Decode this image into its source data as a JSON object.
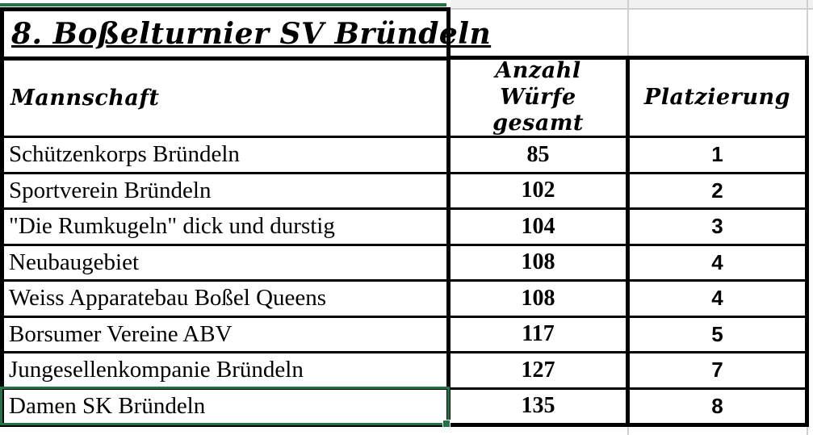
{
  "title": "8. Boßelturnier SV Bründeln",
  "headers": {
    "team": "Mannschaft",
    "throws": "Anzahl Würfe gesamt",
    "placement": "Platzierung"
  },
  "rows": [
    {
      "team": "Schützenkorps Bründeln",
      "throws": "85",
      "placement": "1"
    },
    {
      "team": "Sportverein Bründeln",
      "throws": "102",
      "placement": "2"
    },
    {
      "team": "\"Die Rumkugeln\" dick und durstig",
      "throws": "104",
      "placement": "3"
    },
    {
      "team": "Neubaugebiet",
      "throws": "108",
      "placement": "4"
    },
    {
      "team": "Weiss Apparatebau Boßel Queens",
      "throws": "108",
      "placement": "4"
    },
    {
      "team": "Borsumer Vereine ABV",
      "throws": "117",
      "placement": "5"
    },
    {
      "team": "Jungesellenkompanie Bründeln",
      "throws": "127",
      "placement": "7"
    },
    {
      "team": "Damen SK Bründeln",
      "throws": "135",
      "placement": "8"
    }
  ],
  "colors": {
    "selection_green": "#217346",
    "table_border": "#000000",
    "gridline": "#cfcfcf"
  }
}
